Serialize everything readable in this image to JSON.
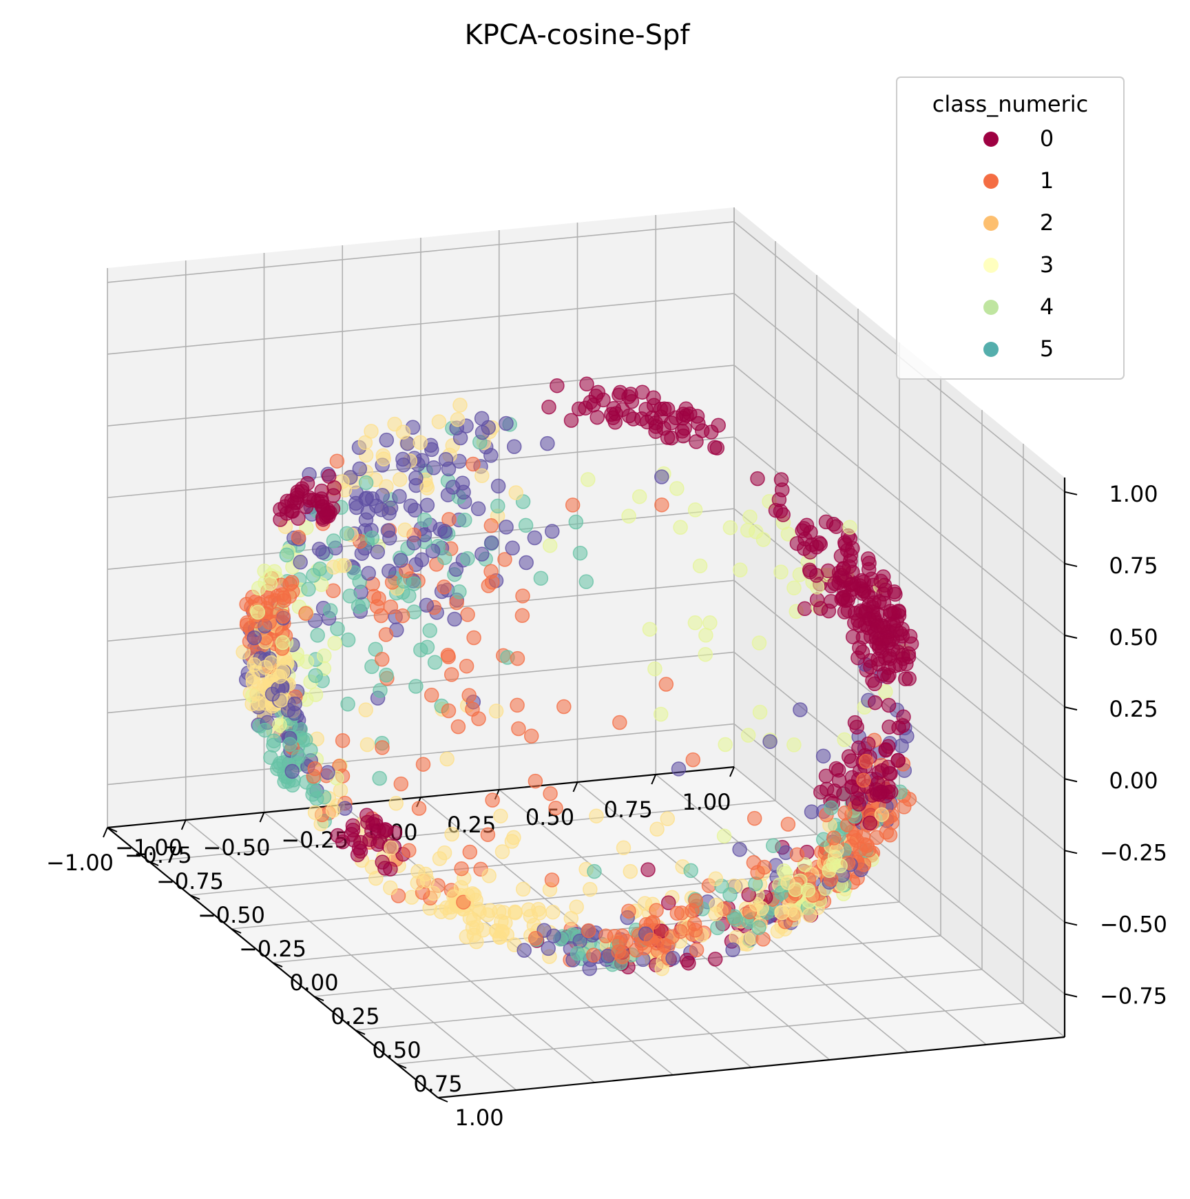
{
  "chart_data": {
    "type": "scatter",
    "projection": "3d",
    "title": "KPCA-cosine-Spf",
    "xlabel": "",
    "ylabel": "",
    "zlabel": "",
    "xlim": [
      -1.0,
      1.0
    ],
    "ylim": [
      -1.0,
      1.0
    ],
    "zlim": [
      -0.9,
      1.05
    ],
    "x_ticks": [
      "−1.00",
      "−0.75",
      "−0.50",
      "−0.25",
      "0.00",
      "0.25",
      "0.50",
      "0.75",
      "1.00"
    ],
    "y_ticks": [
      "−1.00",
      "−0.75",
      "−0.50",
      "−0.25",
      "0.00",
      "0.25",
      "0.50",
      "0.75",
      "1.00"
    ],
    "z_ticks": [
      "−0.75",
      "−0.50",
      "−0.25",
      "0.00",
      "0.25",
      "0.50",
      "0.75",
      "1.00"
    ],
    "grid": true,
    "legend": {
      "title": "class_numeric",
      "placement": "top-right",
      "entries": [
        {
          "label": "0",
          "color": "#9e0142"
        },
        {
          "label": "1",
          "color": "#f46d43"
        },
        {
          "label": "2",
          "color": "#fdbf6f"
        },
        {
          "label": "3",
          "color": "#ffffbf"
        },
        {
          "label": "4",
          "color": "#bfe5a0"
        },
        {
          "label": "5",
          "color": "#54aeac"
        }
      ]
    },
    "point_colors": [
      "#9e0142",
      "#f46d43",
      "#fee08b",
      "#e6f598",
      "#66c2a5",
      "#5e4fa2"
    ],
    "point_alpha": 0.55,
    "series": [
      {
        "name": "0",
        "color_index": 0,
        "clusters": [
          [
            0.6,
            0.45,
            0.55,
            0.25,
            90
          ],
          [
            0.3,
            -0.2,
            0.75,
            0.2,
            60
          ],
          [
            0.9,
            0.1,
            0.1,
            0.2,
            90
          ],
          [
            0.9,
            0.2,
            -0.4,
            0.2,
            60
          ],
          [
            -0.7,
            -0.7,
            0.5,
            0.1,
            40
          ],
          [
            -0.6,
            -0.3,
            -0.75,
            0.1,
            30
          ],
          [
            0.1,
            0.5,
            -0.5,
            0.4,
            40
          ]
        ]
      },
      {
        "name": "1",
        "color_index": 1,
        "clusters": [
          [
            0.5,
            0.4,
            -0.4,
            0.3,
            110
          ],
          [
            -0.8,
            -0.4,
            0.1,
            0.15,
            60
          ],
          [
            -0.3,
            0.1,
            -0.05,
            0.35,
            80
          ],
          [
            0.1,
            0.2,
            -0.9,
            0.2,
            40
          ],
          [
            -0.5,
            0.3,
            0.4,
            0.2,
            30
          ]
        ]
      },
      {
        "name": "2",
        "color_index": 2,
        "clusters": [
          [
            -0.2,
            0.2,
            -0.3,
            0.35,
            110
          ],
          [
            -0.8,
            -0.3,
            -0.1,
            0.15,
            70
          ],
          [
            0.3,
            0.4,
            -0.55,
            0.3,
            60
          ],
          [
            -0.3,
            -0.1,
            0.4,
            0.2,
            40
          ],
          [
            -0.6,
            0.4,
            -0.8,
            0.15,
            30
          ]
        ]
      },
      {
        "name": "3",
        "color_index": 3,
        "clusters": [
          [
            -0.6,
            -0.1,
            0.1,
            0.25,
            60
          ],
          [
            0.1,
            0.3,
            0.3,
            0.25,
            50
          ],
          [
            0.5,
            0.4,
            -0.6,
            0.2,
            30
          ]
        ]
      },
      {
        "name": "4",
        "color_index": 4,
        "clusters": [
          [
            -0.4,
            0.1,
            0.3,
            0.3,
            80
          ],
          [
            -0.7,
            -0.2,
            -0.3,
            0.15,
            40
          ],
          [
            0.3,
            0.2,
            -0.3,
            0.25,
            40
          ],
          [
            -0.1,
            0.3,
            -0.85,
            0.2,
            20
          ]
        ]
      },
      {
        "name": "5",
        "color_index": 5,
        "clusters": [
          [
            -0.4,
            0.0,
            0.45,
            0.3,
            120
          ],
          [
            -0.6,
            -0.2,
            -0.1,
            0.2,
            60
          ],
          [
            0.2,
            0.3,
            -0.15,
            0.3,
            60
          ],
          [
            -0.1,
            0.2,
            -0.75,
            0.15,
            20
          ]
        ]
      }
    ]
  }
}
